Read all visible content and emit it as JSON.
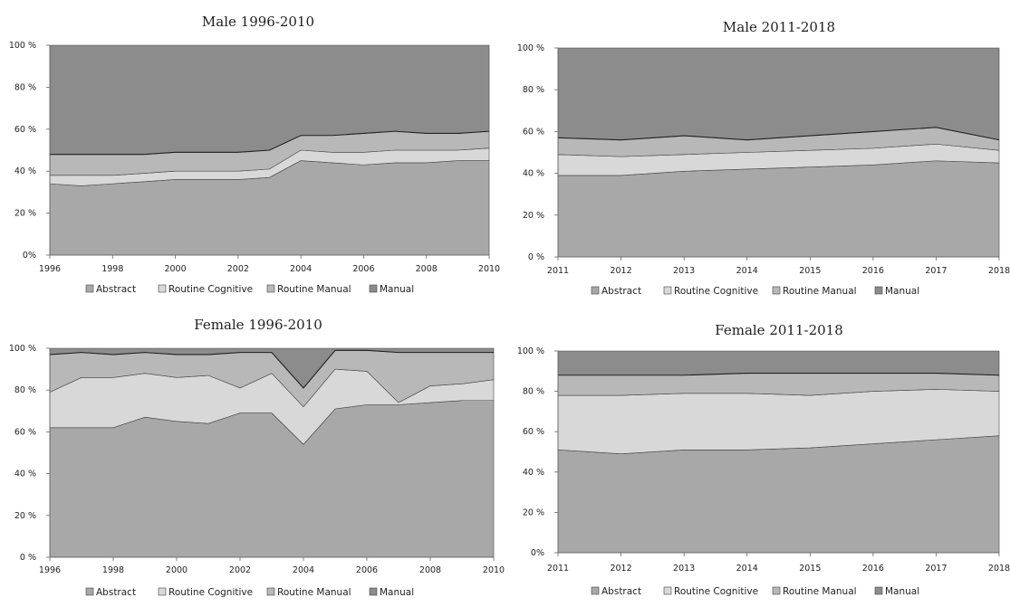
{
  "colors": {
    "Abstract": "#a8a8a8",
    "Routine Cognitive": "#d8d8d8",
    "Routine Manual": "#b8b8b8",
    "Manual": "#8c8c8c"
  },
  "chart_data": [
    {
      "type": "area",
      "stacked": true,
      "title": "Male 1996-2010",
      "x": [
        1996,
        1997,
        1998,
        1999,
        2000,
        2001,
        2002,
        2003,
        2004,
        2005,
        2006,
        2007,
        2008,
        2009,
        2010
      ],
      "x_tick_labels": [
        "1996",
        "1998",
        "2000",
        "2002",
        "2004",
        "2006",
        "2008",
        "2010"
      ],
      "y_tick_labels": [
        "0%",
        "20 %",
        "40 %",
        "60 %",
        "80 %",
        "100 %"
      ],
      "ylim": [
        0,
        100
      ],
      "series": [
        {
          "name": "Abstract",
          "values": [
            34,
            33,
            34,
            35,
            36,
            36,
            36,
            37,
            45,
            44,
            43,
            44,
            44,
            45,
            45
          ]
        },
        {
          "name": "Routine Cognitive",
          "values": [
            4,
            5,
            4,
            4,
            4,
            4,
            4,
            4,
            5,
            5,
            6,
            6,
            6,
            5,
            6
          ]
        },
        {
          "name": "Routine Manual",
          "values": [
            10,
            10,
            10,
            9,
            9,
            9,
            9,
            9,
            7,
            8,
            9,
            9,
            8,
            8,
            8
          ]
        },
        {
          "name": "Manual",
          "values": [
            52,
            52,
            52,
            52,
            51,
            51,
            51,
            50,
            43,
            43,
            42,
            41,
            42,
            42,
            41
          ]
        }
      ],
      "legend": [
        "Abstract",
        "Routine Cognitive",
        "Routine Manual",
        "Manual"
      ],
      "legend_position": "bottom"
    },
    {
      "type": "area",
      "stacked": true,
      "title": "Male 2011-2018",
      "x": [
        2011,
        2012,
        2013,
        2014,
        2015,
        2016,
        2017,
        2018
      ],
      "x_tick_labels": [
        "2011",
        "2012",
        "2013",
        "2014",
        "2015",
        "2016",
        "2017",
        "2018"
      ],
      "y_tick_labels": [
        "0 %",
        "20 %",
        "40 %",
        "60 %",
        "80 %",
        "100 %"
      ],
      "ylim": [
        0,
        100
      ],
      "series": [
        {
          "name": "Abstract",
          "values": [
            39,
            39,
            41,
            42,
            43,
            44,
            46,
            45
          ]
        },
        {
          "name": "Routine Cognitive",
          "values": [
            10,
            9,
            8,
            8,
            8,
            8,
            8,
            6
          ]
        },
        {
          "name": "Routine Manual",
          "values": [
            8,
            8,
            9,
            6,
            7,
            8,
            8,
            5
          ]
        },
        {
          "name": "Manual",
          "values": [
            43,
            44,
            42,
            44,
            42,
            40,
            38,
            44
          ]
        }
      ],
      "legend": [
        "Abstract",
        "Routine Cognitive",
        "Routine Manual",
        "Manual"
      ],
      "legend_position": "bottom"
    },
    {
      "type": "area",
      "stacked": true,
      "title": "Female 1996-2010",
      "x": [
        1996,
        1997,
        1998,
        1999,
        2000,
        2001,
        2002,
        2003,
        2004,
        2005,
        2006,
        2007,
        2008,
        2009,
        2010
      ],
      "x_tick_labels": [
        "1996",
        "1998",
        "2000",
        "2002",
        "2004",
        "2006",
        "2008",
        "2010"
      ],
      "y_tick_labels": [
        "0 %",
        "20 %",
        "40 %",
        "60 %",
        "80 %",
        "100 %"
      ],
      "ylim": [
        0,
        100
      ],
      "series": [
        {
          "name": "Abstract",
          "values": [
            62,
            62,
            62,
            67,
            65,
            64,
            69,
            69,
            54,
            71,
            73,
            73,
            74,
            75,
            75
          ]
        },
        {
          "name": "Routine Cognitive",
          "values": [
            17,
            24,
            24,
            21,
            21,
            23,
            12,
            19,
            18,
            19,
            16,
            1,
            8,
            8,
            10
          ]
        },
        {
          "name": "Routine Manual",
          "values": [
            18,
            12,
            11,
            10,
            11,
            10,
            17,
            10,
            9,
            9,
            10,
            24,
            16,
            15,
            13
          ]
        },
        {
          "name": "Manual",
          "values": [
            3,
            2,
            3,
            2,
            3,
            3,
            2,
            2,
            19,
            1,
            1,
            2,
            2,
            2,
            2
          ]
        }
      ],
      "legend": [
        "Abstract",
        "Routine Cognitive",
        "Routine Manual",
        "Manual"
      ],
      "legend_position": "bottom"
    },
    {
      "type": "area",
      "stacked": true,
      "title": "Female 2011-2018",
      "x": [
        2011,
        2012,
        2013,
        2014,
        2015,
        2016,
        2017,
        2018
      ],
      "x_tick_labels": [
        "2011",
        "2012",
        "2013",
        "2014",
        "2015",
        "2016",
        "2017",
        "2018"
      ],
      "y_tick_labels": [
        "0%",
        "20 %",
        "40 %",
        "60 %",
        "80 %",
        "100 %"
      ],
      "ylim": [
        0,
        100
      ],
      "series": [
        {
          "name": "Abstract",
          "values": [
            51,
            49,
            51,
            51,
            52,
            54,
            56,
            58
          ]
        },
        {
          "name": "Routine Cognitive",
          "values": [
            27,
            29,
            28,
            28,
            26,
            26,
            25,
            22
          ]
        },
        {
          "name": "Routine Manual",
          "values": [
            10,
            10,
            9,
            10,
            11,
            9,
            8,
            8
          ]
        },
        {
          "name": "Manual",
          "values": [
            12,
            12,
            12,
            11,
            11,
            11,
            11,
            12
          ]
        }
      ],
      "legend": [
        "Abstract",
        "Routine Cognitive",
        "Routine Manual",
        "Manual"
      ],
      "legend_position": "bottom"
    }
  ]
}
